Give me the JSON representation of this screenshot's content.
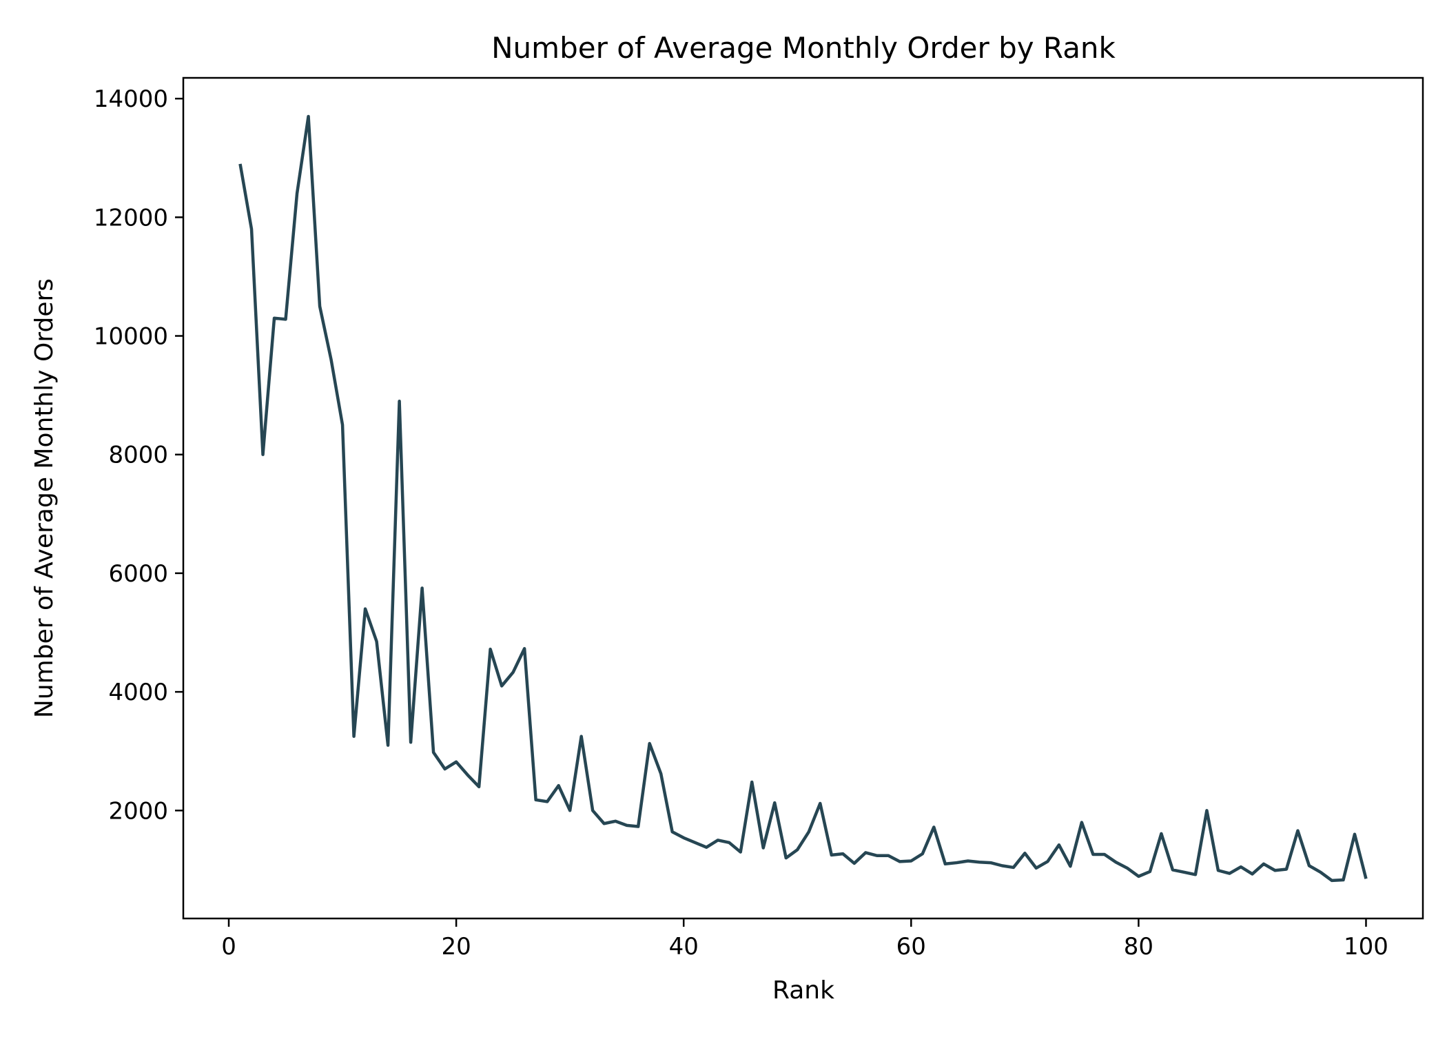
{
  "chart_data": {
    "type": "line",
    "title": "Number of Average Monthly Order by Rank",
    "xlabel": "Rank",
    "ylabel": "Number of Average Monthly Orders",
    "xlim": [
      -4,
      105
    ],
    "ylim": [
      180,
      14350
    ],
    "xticks": [
      0,
      20,
      40,
      60,
      80,
      100
    ],
    "yticks": [
      2000,
      4000,
      6000,
      8000,
      10000,
      12000,
      14000
    ],
    "grid": false,
    "series": [
      {
        "color": "#264653",
        "x": [
          1,
          2,
          3,
          4,
          5,
          6,
          7,
          8,
          9,
          10,
          11,
          12,
          13,
          14,
          15,
          16,
          17,
          18,
          19,
          20,
          21,
          22,
          23,
          24,
          25,
          26,
          27,
          28,
          29,
          30,
          31,
          32,
          33,
          34,
          35,
          36,
          37,
          38,
          39,
          40,
          41,
          42,
          43,
          44,
          45,
          46,
          47,
          48,
          49,
          50,
          51,
          52,
          53,
          54,
          55,
          56,
          57,
          58,
          59,
          60,
          61,
          62,
          63,
          64,
          65,
          66,
          67,
          68,
          69,
          70,
          71,
          72,
          73,
          74,
          75,
          76,
          77,
          78,
          79,
          80,
          81,
          82,
          83,
          84,
          85,
          86,
          87,
          88,
          89,
          90,
          91,
          92,
          93,
          94,
          95,
          96,
          97,
          98,
          99,
          100
        ],
        "values": [
          12900,
          11800,
          8000,
          10300,
          10280,
          12400,
          13700,
          10500,
          9600,
          8500,
          3250,
          5400,
          4850,
          3100,
          8900,
          3150,
          5750,
          2980,
          2700,
          2820,
          2600,
          2400,
          4720,
          4100,
          4330,
          4730,
          2180,
          2150,
          2420,
          2000,
          3250,
          2000,
          1780,
          1820,
          1750,
          1730,
          3130,
          2620,
          1640,
          1540,
          1460,
          1380,
          1500,
          1460,
          1300,
          2480,
          1370,
          2130,
          1200,
          1340,
          1640,
          2120,
          1250,
          1270,
          1110,
          1290,
          1240,
          1240,
          1140,
          1150,
          1270,
          1720,
          1100,
          1120,
          1150,
          1130,
          1120,
          1070,
          1040,
          1280,
          1030,
          1140,
          1420,
          1060,
          1800,
          1260,
          1260,
          1130,
          1030,
          890,
          970,
          1610,
          1000,
          960,
          920,
          2000,
          990,
          940,
          1050,
          930,
          1100,
          990,
          1010,
          1660,
          1070,
          960,
          820,
          830,
          1600,
          850
        ]
      }
    ]
  }
}
